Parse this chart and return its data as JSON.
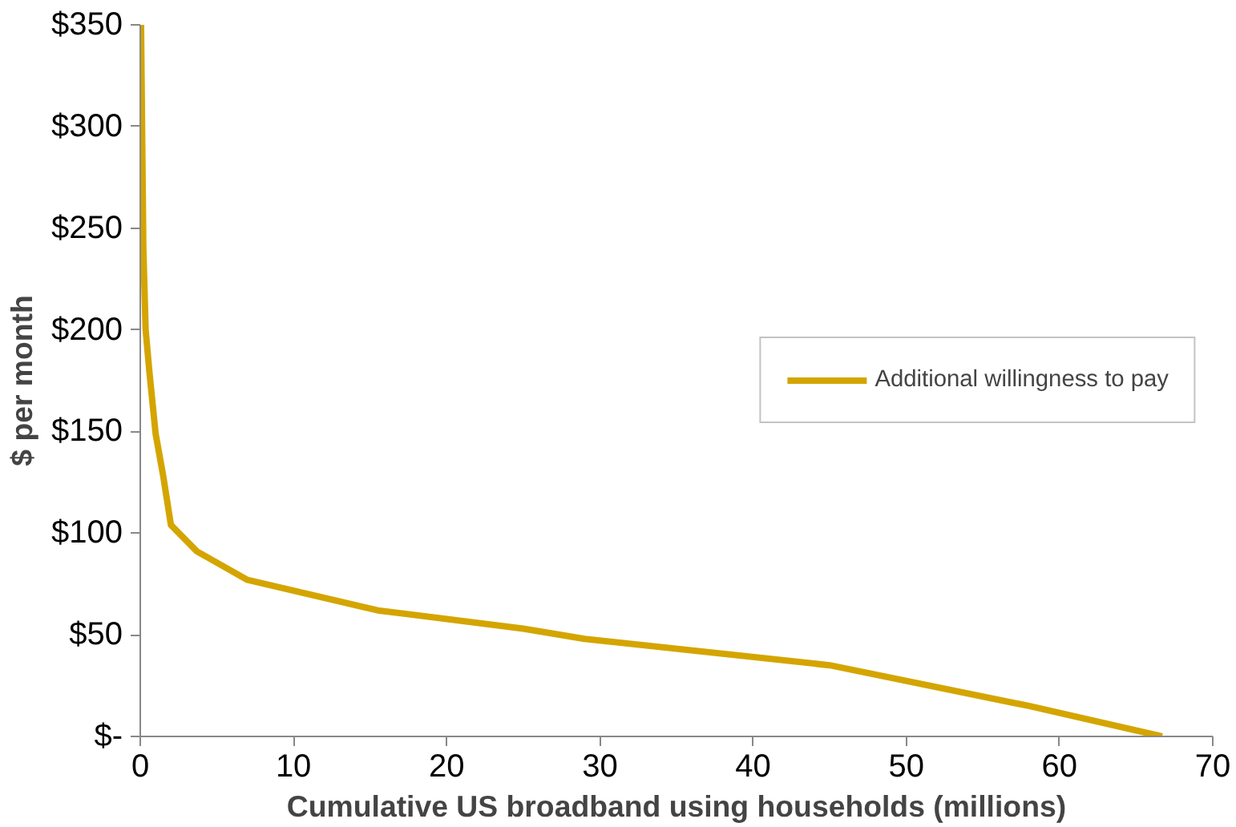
{
  "chart_data": {
    "type": "line",
    "xlabel": "Cumulative US broadband using households (millions)",
    "ylabel": "$ per month",
    "x": [
      0.05,
      0.2,
      0.35,
      0.6,
      1.0,
      1.5,
      2.0,
      3.7,
      7.0,
      15.5,
      25.0,
      29.0,
      45.0,
      58.0,
      66.7
    ],
    "series": [
      {
        "name": "Additional willingness to pay",
        "color": "#d4a500",
        "values": [
          350,
          240,
          200,
          179,
          149,
          128,
          104,
          91,
          77,
          62,
          53,
          48,
          35,
          15,
          0
        ]
      }
    ],
    "xlim": [
      0,
      70
    ],
    "xticks": [
      0,
      10,
      20,
      30,
      40,
      50,
      60,
      70
    ],
    "ylim": [
      0,
      350
    ],
    "yticks": [
      {
        "value": 0,
        "label": "$-"
      },
      {
        "value": 50,
        "label": "$50"
      },
      {
        "value": 100,
        "label": "$100"
      },
      {
        "value": 150,
        "label": "$150"
      },
      {
        "value": 200,
        "label": "$200"
      },
      {
        "value": 250,
        "label": "$250"
      },
      {
        "value": 300,
        "label": "$300"
      },
      {
        "value": 350,
        "label": "$350"
      }
    ],
    "grid": false,
    "legend": "right",
    "marker": "none",
    "line_style": "solid"
  }
}
